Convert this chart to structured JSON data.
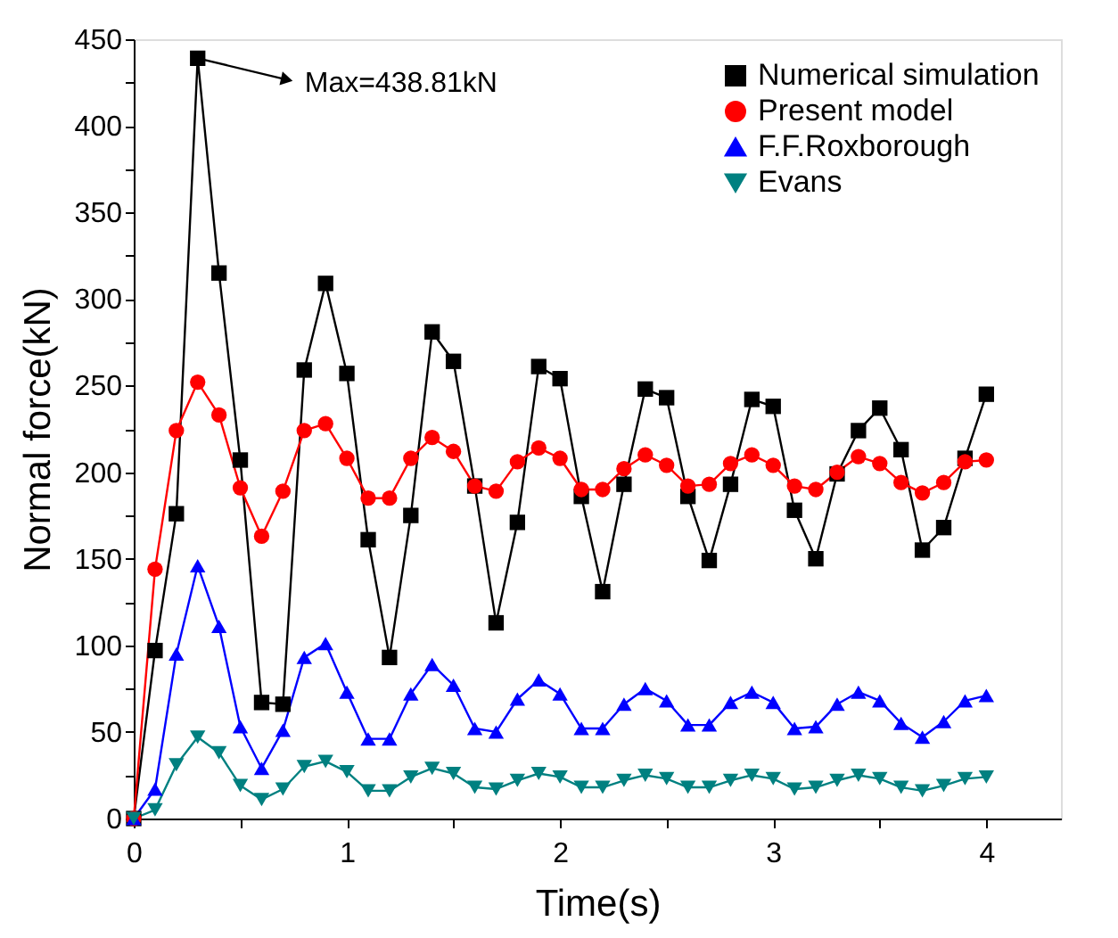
{
  "chart_data": {
    "type": "line",
    "xlabel": "Time(s)",
    "ylabel": "Normal force(kN)",
    "x": [
      0,
      0.1,
      0.2,
      0.3,
      0.4,
      0.5,
      0.6,
      0.7,
      0.8,
      0.9,
      1.0,
      1.1,
      1.2,
      1.3,
      1.4,
      1.5,
      1.6,
      1.7,
      1.8,
      1.9,
      2.0,
      2.1,
      2.2,
      2.3,
      2.4,
      2.5,
      2.6,
      2.7,
      2.8,
      2.9,
      3.0,
      3.1,
      3.2,
      3.3,
      3.4,
      3.5,
      3.6,
      3.7,
      3.8,
      3.9,
      4.0
    ],
    "series": [
      {
        "name": "Numerical simulation",
        "color": "#000000",
        "marker": "square",
        "values": [
          0,
          97,
          176,
          439,
          315,
          207,
          67,
          66,
          259,
          309,
          257,
          161,
          93,
          175,
          281,
          264,
          192,
          113,
          171,
          261,
          254,
          186,
          131,
          193,
          248,
          243,
          186,
          149,
          193,
          242,
          238,
          178,
          150,
          199,
          224,
          237,
          213,
          155,
          168,
          208,
          245
        ]
      },
      {
        "name": "Present model",
        "color": "#ff0000",
        "marker": "circle",
        "values": [
          0,
          144,
          224,
          252,
          233,
          191,
          163,
          189,
          224,
          228,
          208,
          185,
          185,
          208,
          220,
          212,
          192,
          189,
          206,
          214,
          208,
          190,
          190,
          202,
          210,
          204,
          192,
          193,
          205,
          210,
          204,
          192,
          190,
          200,
          209,
          205,
          194,
          188,
          194,
          206,
          207
        ]
      },
      {
        "name": "F.F.Roxborough",
        "color": "#0000ff",
        "marker": "triangle",
        "values": [
          0,
          17,
          95,
          146,
          111,
          53,
          29,
          51,
          93,
          101,
          73,
          46,
          46,
          72,
          89,
          77,
          52,
          50,
          69,
          80,
          72,
          52,
          52,
          66,
          75,
          68,
          54,
          54,
          67,
          73,
          67,
          52,
          53,
          66,
          73,
          68,
          55,
          47,
          56,
          68,
          71
        ]
      },
      {
        "name": "Evans",
        "color": "#008080",
        "marker": "triangle_down",
        "values": [
          0,
          5,
          31,
          47,
          38,
          19,
          11,
          17,
          30,
          33,
          27,
          16,
          16,
          24,
          29,
          26,
          18,
          17,
          22,
          26,
          24,
          18,
          18,
          22,
          25,
          23,
          18,
          18,
          22,
          25,
          23,
          17,
          18,
          22,
          25,
          23,
          18,
          16,
          19,
          23,
          24
        ]
      }
    ],
    "xlim": [
      0,
      4.35
    ],
    "xticks": [
      0,
      {
        "value": 0.5,
        "label": null
      },
      1,
      {
        "value": 1.5,
        "label": null
      },
      2,
      {
        "value": 2.5,
        "label": null
      },
      3,
      {
        "value": 3.5,
        "label": null
      },
      4
    ],
    "ylim": [
      0,
      450
    ],
    "yticks": [
      0,
      {
        "value": 25,
        "label": null
      },
      50,
      {
        "value": 75,
        "label": null
      },
      100,
      {
        "value": 125,
        "label": null
      },
      150,
      {
        "value": 175,
        "label": null
      },
      200,
      {
        "value": 225,
        "label": null
      },
      250,
      {
        "value": 275,
        "label": null
      },
      300,
      {
        "value": 325,
        "label": null
      },
      350,
      {
        "value": 375,
        "label": null
      },
      400,
      {
        "value": 425,
        "label": null
      },
      450
    ],
    "annotations": [
      {
        "text": "Max=438.81kN",
        "x": 0.3,
        "y": 439
      }
    ],
    "legend": "top right",
    "grid": false,
    "line_style": "solid"
  }
}
